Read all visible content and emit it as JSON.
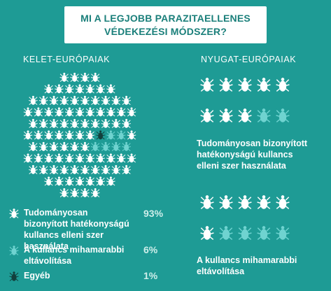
{
  "title": {
    "line1": "MI A LEGJOBB PARAZITAELLENES",
    "line2": "VÉDEKEZÉSI MÓDSZER?"
  },
  "colors": {
    "background": "#1e9b95",
    "scientific": "#ffffff",
    "removal": "#6fd3d0",
    "other": "#13403d",
    "title_text": "#1a7f7a"
  },
  "east": {
    "header": "KELET-EURÓPAIAK"
  },
  "west": {
    "header": "NYUGAT-EURÓPAIAK",
    "label_scientific": "Tudományosan bizonyított hatékonyságú kullancs elleni szer használata",
    "label_removal": "A kullancs mihamarabbi eltávolítása"
  },
  "legend": [
    {
      "key": "scientific",
      "label": "Tudományosan bizonyított hatékonyságú kullancs elleni szer használata",
      "value": "93%"
    },
    {
      "key": "removal",
      "label": "A kullancs mihamarabbi eltávolítása",
      "value": "6%"
    },
    {
      "key": "other",
      "label": "Egyéb",
      "value": "1%"
    }
  ],
  "chart_data": [
    {
      "type": "pictogram",
      "title": "KELET-EURÓPAIAK",
      "categories": [
        "Tudományosan bizonyított hatékonyságú kullancs elleni szer használata",
        "A kullancs mihamarabbi eltávolítása",
        "Egyéb"
      ],
      "values": [
        93,
        6,
        1
      ],
      "unit": "%"
    },
    {
      "type": "pictogram",
      "title": "NYUGAT-EURÓPAIAK",
      "groups": [
        {
          "label": "Tudományosan bizonyított hatékonyságú kullancs elleni szer használata",
          "filled": 8,
          "total": 10
        },
        {
          "label": "A kullancs mihamarabbi eltávolítása",
          "filled": 6,
          "total": 10
        }
      ]
    }
  ]
}
